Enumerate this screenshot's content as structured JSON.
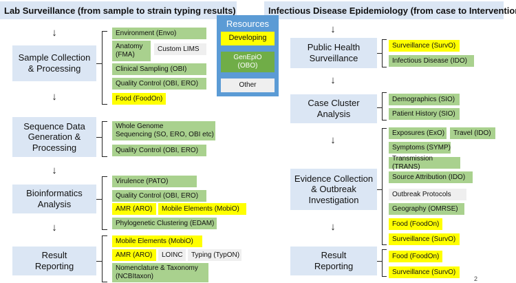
{
  "headers": {
    "left": "Lab Surveillance (from sample to strain typing results)",
    "right": "Infectious Disease Epidemiology (from case to Intervention)"
  },
  "resources": {
    "title": "Resources",
    "items": [
      "Developing",
      "GenEpiO\n(OBO)",
      "Other"
    ]
  },
  "colors": {
    "green": "#a9d18e",
    "yellow": "#ffff00",
    "other": "#efefef",
    "stage": "#dbe6f4",
    "resources": "#5b9bd5"
  },
  "left_stages": [
    "Sample Collection\n& Processing",
    "Sequence Data\nGeneration &\nProcessing",
    "Bioinformatics\nAnalysis",
    "Result\nReporting"
  ],
  "right_stages": [
    "Public Health\nSurveillance",
    "Case Cluster\nAnalysis",
    "Evidence Collection\n& Outbreak\nInvestigation",
    "Result\nReporting"
  ],
  "left_items": [
    "Environment (Envo)",
    "Anatomy\n(FMA)",
    "Custom LIMS",
    "Clinical Sampling (OBI)",
    "Quality Control (OBI, ERO)",
    "Food (FoodOn)",
    "Whole Genome\nSequencing (SO, ERO, OBI etc)",
    "Quality Control (OBI, ERO)",
    "Virulence (PATO)",
    "Quality Control (OBI, ERO)",
    "AMR (ARO)",
    "Mobile Elements (MobiO)",
    "Phylogenetic Clustering (EDAM)",
    "Mobile Elements (MobiO)",
    "AMR (ARO)",
    "LOINC",
    "Typing (TypON)",
    "Nomenclature & Taxonomy\n(NCBItaxon)"
  ],
  "right_items": [
    "Surveillance (SurvO)",
    "Infectious Disease (IDO)",
    "Demographics (SIO)",
    "Patient History (SIO)",
    "Exposures (ExO)",
    "Travel (IDO)",
    "Symptoms (SYMP)",
    "Transmission (TRANS)",
    "Source Attribution (IDO)",
    "Outbreak Protocols",
    "Geography (OMRSE)",
    "Food (FoodOn)",
    "Surveillance (SurvO)",
    "Food (FoodOn)",
    "Surveillance (SurvO)"
  ],
  "arrow_glyph": "↓",
  "page_number": "2"
}
